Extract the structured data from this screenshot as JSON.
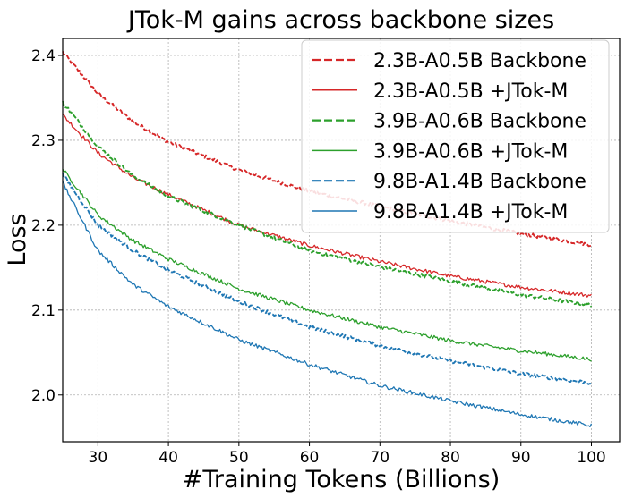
{
  "chart_data": {
    "type": "line",
    "title": "JTok-M gains across backbone sizes",
    "xlabel": "#Training Tokens (Billions)",
    "ylabel": "Loss",
    "xlim": [
      25,
      104
    ],
    "ylim": [
      1.945,
      2.42
    ],
    "xticks": [
      30,
      40,
      50,
      60,
      70,
      80,
      90,
      100
    ],
    "yticks": [
      2.0,
      2.1,
      2.2,
      2.3,
      2.4
    ],
    "xtick_labels": [
      "30",
      "40",
      "50",
      "60",
      "70",
      "80",
      "90",
      "100"
    ],
    "ytick_labels": [
      "2.0",
      "2.1",
      "2.2",
      "2.3",
      "2.4"
    ],
    "grid": true,
    "legend_position": "top-right",
    "series": [
      {
        "name": "2.3B-A0.5B Backbone",
        "color": "#d62728",
        "style": "dashed",
        "x": [
          25,
          30,
          35,
          40,
          50,
          60,
          70,
          80,
          90,
          100
        ],
        "y": [
          2.404,
          2.355,
          2.322,
          2.298,
          2.265,
          2.24,
          2.222,
          2.205,
          2.19,
          2.177
        ]
      },
      {
        "name": "2.3B-A0.5B +JTok-M",
        "color": "#d62728",
        "style": "solid",
        "x": [
          25,
          30,
          35,
          40,
          50,
          60,
          70,
          80,
          90,
          100
        ],
        "y": [
          2.33,
          2.285,
          2.256,
          2.236,
          2.2,
          2.176,
          2.157,
          2.14,
          2.127,
          2.117
        ]
      },
      {
        "name": "3.9B-A0.6B Backbone",
        "color": "#2ca02c",
        "style": "dashed",
        "x": [
          25,
          30,
          35,
          40,
          50,
          60,
          70,
          80,
          90,
          100
        ],
        "y": [
          2.345,
          2.293,
          2.258,
          2.234,
          2.2,
          2.17,
          2.151,
          2.134,
          2.118,
          2.106
        ]
      },
      {
        "name": "3.9B-A0.6B +JTok-M",
        "color": "#2ca02c",
        "style": "solid",
        "x": [
          25,
          30,
          35,
          40,
          50,
          60,
          70,
          80,
          90,
          100
        ],
        "y": [
          2.266,
          2.212,
          2.182,
          2.16,
          2.125,
          2.1,
          2.08,
          2.064,
          2.052,
          2.042
        ]
      },
      {
        "name": "9.8B-A1.4B Backbone",
        "color": "#1f77b4",
        "style": "dashed",
        "x": [
          25,
          30,
          35,
          40,
          50,
          60,
          70,
          80,
          90,
          100
        ],
        "y": [
          2.26,
          2.2,
          2.17,
          2.147,
          2.11,
          2.08,
          2.058,
          2.04,
          2.025,
          2.014
        ]
      },
      {
        "name": "9.8B-A1.4B +JTok-M",
        "color": "#1f77b4",
        "style": "solid",
        "x": [
          25,
          30,
          35,
          40,
          50,
          60,
          70,
          80,
          90,
          100
        ],
        "y": [
          2.25,
          2.17,
          2.13,
          2.104,
          2.065,
          2.036,
          2.011,
          1.993,
          1.977,
          1.964
        ]
      }
    ]
  }
}
